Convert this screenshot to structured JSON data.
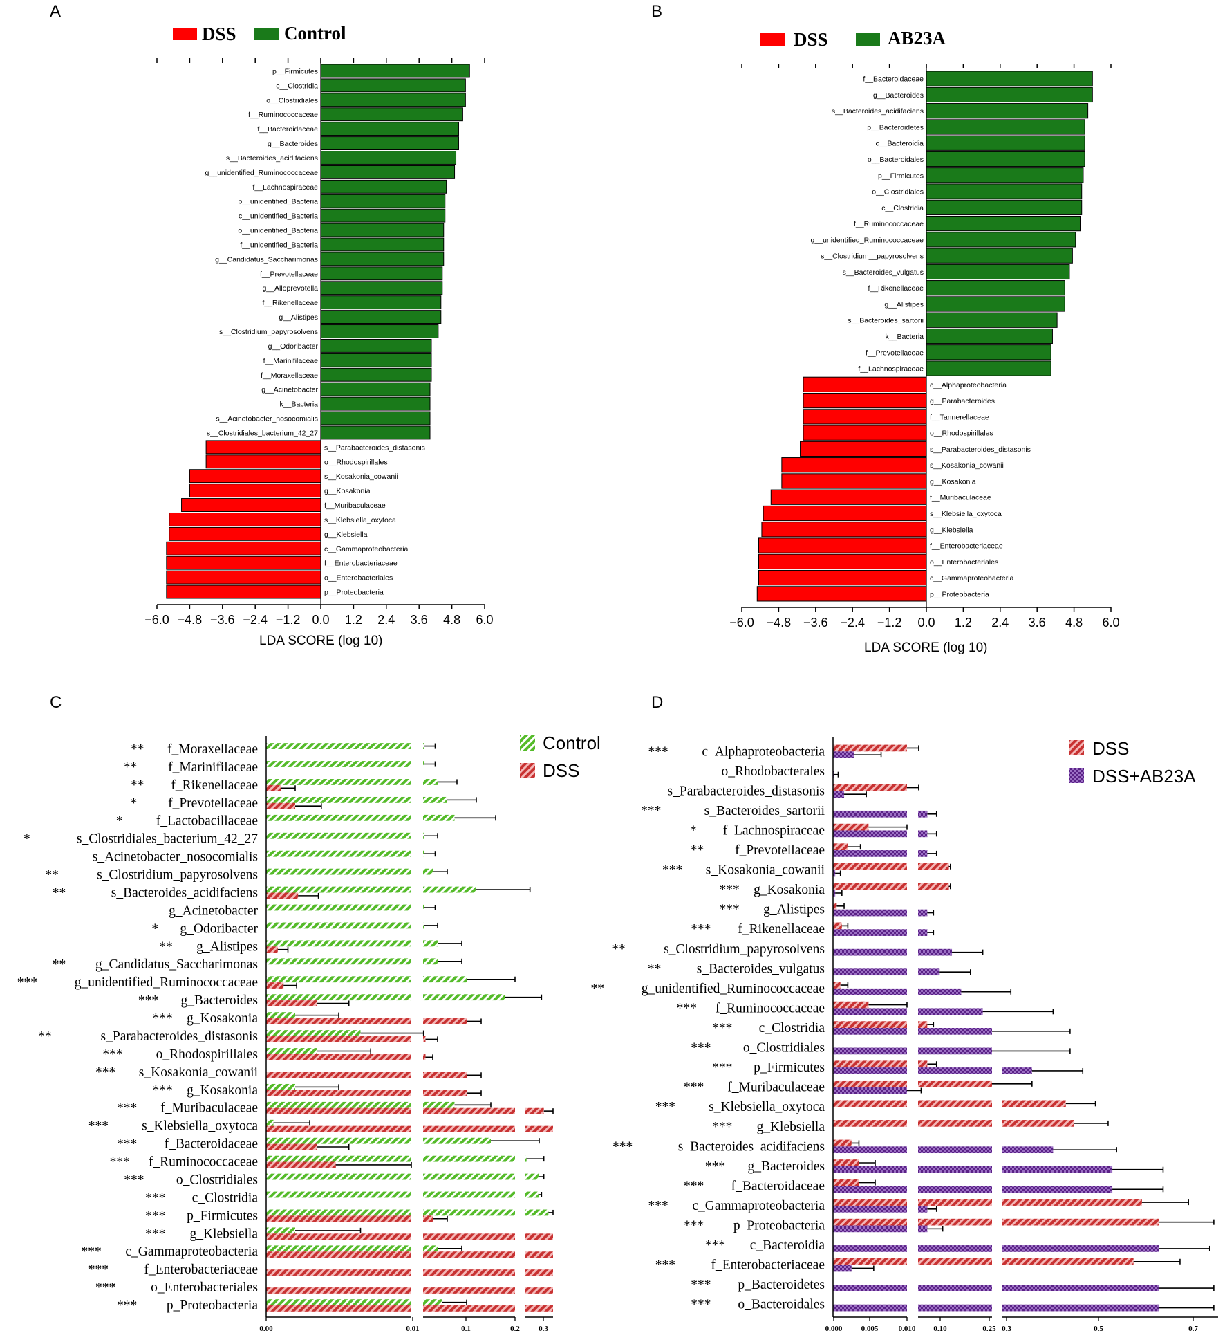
{
  "colors": {
    "dss": "#ff0000",
    "control": "#1a7a1a",
    "dss_hatch": "#c83232",
    "control_hatch": "#55bb2a",
    "ab23a_hatch": "#6a2a90"
  },
  "chart_data": [
    {
      "panel": "A",
      "type": "bar",
      "orientation": "horizontal",
      "legend": [
        "DSS",
        "Control"
      ],
      "xlabel": "LDA SCORE (log 10)",
      "xlim": [
        -6.0,
        6.0
      ],
      "xticks": [
        "−6.0",
        "−4.8",
        "−3.6",
        "−2.4",
        "−1.2",
        "0.0",
        "1.2",
        "2.4",
        "3.6",
        "4.8",
        "6.0"
      ],
      "categories": [
        "p__Firmicutes",
        "c__Clostridia",
        "o__Clostridiales",
        "f__Ruminococcaceae",
        "f__Bacteroidaceae",
        "g__Bacteroides",
        "s__Bacteroides_acidifaciens",
        "g__unidentified_Ruminococcaceae",
        "f__Lachnospiraceae",
        "p__unidentified_Bacteria",
        "c__unidentified_Bacteria",
        "o__unidentified_Bacteria",
        "f__unidentified_Bacteria",
        "g__Candidatus_Saccharimonas",
        "f__Prevotellaceae",
        "g__Alloprevotella",
        "f__Rikenellaceae",
        "g__Alistipes",
        "s__Clostridium_papyrosolvens",
        "g__Odoribacter",
        "f__Marinifilaceae",
        "f__Moraxellaceae",
        "g__Acinetobacter",
        "k__Bacteria",
        "s__Acinetobacter_nosocomialis",
        "s__Clostridiales_bacterium_42_27",
        "s__Parabacteroides_distasonis",
        "o__Rhodospirillales",
        "s__Kosakonia_cowanii",
        "g__Kosakonia",
        "f__Muribaculaceae",
        "s__Klebsiella_oxytoca",
        "g__Klebsiella",
        "c__Gammaproteobacteria",
        "f__Enterobacteriaceae",
        "o__Enterobacteriales",
        "p__Proteobacteria"
      ],
      "values": [
        5.45,
        5.3,
        5.3,
        5.2,
        5.05,
        5.05,
        4.95,
        4.9,
        4.6,
        4.55,
        4.55,
        4.5,
        4.5,
        4.5,
        4.45,
        4.45,
        4.4,
        4.4,
        4.3,
        4.05,
        4.05,
        4.05,
        4.0,
        4.0,
        4.0,
        4.0,
        -4.2,
        -4.2,
        -4.8,
        -4.8,
        -5.1,
        -5.55,
        -5.55,
        -5.65,
        -5.65,
        -5.65,
        -5.65
      ]
    },
    {
      "panel": "B",
      "type": "bar",
      "orientation": "horizontal",
      "legend": [
        "DSS",
        "AB23A"
      ],
      "xlabel": "LDA SCORE (log 10)",
      "xlim": [
        -6.0,
        6.0
      ],
      "xticks": [
        "−6.0",
        "−4.8",
        "−3.6",
        "−2.4",
        "−1.2",
        "0.0",
        "1.2",
        "2.4",
        "3.6",
        "4.8",
        "6.0"
      ],
      "categories": [
        "f__Bacteroidaceae",
        "g__Bacteroides",
        "s__Bacteroides_acidifaciens",
        "p__Bacteroidetes",
        "c__Bacteroidia",
        "o__Bacteroidales",
        "p__Firmicutes",
        "o__Clostridiales",
        "c__Clostridia",
        "f__Ruminococcaceae",
        "g__unidentified_Ruminococcaceae",
        "s__Clostridium__papyrosolvens",
        "s__Bacteroides_vulgatus",
        "f__Rikenellaceae",
        "g__Alistipes",
        "s__Bacteroides_sartorii",
        "k__Bacteria",
        "f__Prevotellaceae",
        "f__Lachnospiraceae",
        "c__Alphaproteobacteria",
        "g__Parabacteroides",
        "f__Tannerellaceae",
        "o__Rhodospirillales",
        "s__Parabacteroides_distasonis",
        "s__Kosakonia_cowanii",
        "g__Kosakonia",
        "f__Muribaculaceae",
        "s__Klebsiella_oxytoca",
        "g__Klebsiella",
        "f__Enterobacteriaceae",
        "o__Enterobacteriales",
        "c__Gammaproteobacteria",
        "p__Proteobacteria"
      ],
      "values": [
        5.4,
        5.4,
        5.25,
        5.15,
        5.15,
        5.15,
        5.1,
        5.05,
        5.05,
        5.0,
        4.85,
        4.75,
        4.65,
        4.5,
        4.5,
        4.25,
        4.1,
        4.05,
        4.05,
        -4.0,
        -4.0,
        -4.0,
        -4.0,
        -4.1,
        -4.7,
        -4.7,
        -5.05,
        -5.3,
        -5.35,
        -5.45,
        -5.45,
        -5.45,
        -5.5
      ]
    },
    {
      "panel": "C",
      "type": "bar",
      "orientation": "horizontal",
      "axis_break": true,
      "xticks": [
        "0.00",
        "0.01",
        "0.1",
        "0.2",
        "0.3"
      ],
      "categories": [
        "f_Moraxellaceae",
        "f_Marinifilaceae",
        "f_Rikenellaceae",
        "f_Prevotellaceae",
        "f_Lactobacillaceae",
        "s_Clostridiales_bacterium_42_27",
        "s_Acinetobacter_nosocomialis",
        "s_Clostridium_papyrosolvens",
        "s_Bacteroides_acidifaciens",
        "g_Acinetobacter",
        "g_Odoribacter",
        "g_Alistipes",
        "g_Candidatus_Saccharimonas",
        "g_unidentified_Ruminococcaceae",
        "g_Bacteroides",
        "g_Kosakonia",
        "s_Parabacteroides_distasonis",
        "o_Rhodospirillales",
        "s_Kosakonia_cowanii",
        "g_Kosakonia",
        "f_Muribaculaceae",
        "s_Klebsiella_oxytoca",
        "f_Bacteroidaceae",
        "f_Ruminococcaceae",
        "o_Clostridiales",
        "c_Clostridia",
        "p_Firmicutes",
        "g_Klebsiella",
        "c_Gammaproteobacteria",
        "f_Enterobacteriaceae",
        "o_Enterobacteriales",
        "p_Proteobacteria"
      ],
      "stars": [
        "**",
        "**",
        "**",
        "*",
        "*",
        "*",
        "",
        "**",
        "**",
        "",
        "*",
        "**",
        "**",
        "***",
        "***",
        "***",
        "**",
        "***",
        "***",
        "***",
        "***",
        "***",
        "***",
        "***",
        "***",
        "***",
        "***",
        "***",
        "***",
        "***",
        "***",
        "***"
      ],
      "series": [
        {
          "name": "Control",
          "values": [
            0.012,
            0.012,
            0.04,
            0.06,
            0.075,
            0.012,
            0.012,
            0.03,
            0.12,
            0.012,
            0.012,
            0.04,
            0.04,
            0.1,
            0.18,
            0.002,
            0.0065,
            0.0035,
            0.0,
            0.002,
            0.075,
            0.0005,
            0.15,
            0.205,
            0.26,
            0.26,
            0.3,
            0.002,
            0.04,
            0.0,
            0.0,
            0.05
          ],
          "errors": [
            0.035,
            0.035,
            0.08,
            0.12,
            0.16,
            0.04,
            0.035,
            0.06,
            0.22,
            0.035,
            0.04,
            0.09,
            0.09,
            0.2,
            0.27,
            0.005,
            0.011,
            0.0072,
            0.0,
            0.005,
            0.15,
            0.003,
            0.26,
            0.28,
            0.28,
            0.27,
            0.32,
            0.0065,
            0.09,
            0.0,
            0.0,
            0.1
          ]
        },
        {
          "name": "DSS",
          "values": [
            0.0,
            0.0,
            0.001,
            0.002,
            0.0,
            0.0,
            0.0,
            0.0,
            0.0022,
            0.0,
            0.0,
            0.0008,
            0.0,
            0.0012,
            0.0035,
            0.1,
            0.015,
            0.015,
            0.1,
            0.1,
            0.28,
            0.38,
            0.0035,
            0.0048,
            0.0,
            0.0,
            0.03,
            0.38,
            0.38,
            0.38,
            0.38,
            0.38
          ],
          "errors": [
            0.0,
            0.0,
            0.002,
            0.0038,
            0.0,
            0.0,
            0.0,
            0.0,
            0.0036,
            0.0,
            0.0,
            0.0015,
            0.0,
            0.0021,
            0.0057,
            0.13,
            0.04,
            0.03,
            0.13,
            0.13,
            0.32,
            0.38,
            0.0057,
            0.01,
            0.015,
            0.015,
            0.06,
            0.38,
            0.38,
            0.38,
            0.38,
            0.38
          ]
        }
      ],
      "legend": [
        "Control",
        "DSS"
      ]
    },
    {
      "panel": "D",
      "type": "bar",
      "orientation": "horizontal",
      "axis_break": true,
      "xticks": [
        "0.000",
        "0.005",
        "0.010",
        "0.10",
        "0.25",
        "0.3",
        "0.5",
        "0.7"
      ],
      "categories": [
        "c_Alphaproteobacteria",
        "o_Rhodobacterales",
        "s_Parabacteroides_distasonis",
        "s_Bacteroides_sartorii",
        "f_Lachnospiraceae",
        "f_Prevotellaceae",
        "s_Kosakonia_cowanii",
        "g_Kosakonia",
        "g_Alistipes",
        "f_Rikenellaceae",
        "s_Clostridium_papyrosolvens",
        "s_Bacteroides_vulgatus",
        "g_unidentified_Ruminococcaceae",
        "f_Ruminococcaceae",
        "c_Clostridia",
        "o_Clostridiales",
        "p_Firmicutes",
        "f_Muribaculaceae",
        "s_Klebsiella_oxytoca",
        "g_Klebsiella",
        "s_Bacteroides_acidifaciens",
        "g_Bacteroides",
        "f_Bacteroidaceae",
        "c_Gammaproteobacteria",
        "p_Proteobacteria",
        "c_Bacteroidia",
        "f_Enterobacteriaceae",
        "p_Bacteroidetes",
        "o_Bacteroidales"
      ],
      "stars": [
        "***",
        "",
        "",
        "***",
        "*",
        "**",
        "***",
        "***",
        "***",
        "***",
        "**",
        "**",
        "**",
        "***",
        "***",
        "***",
        "***",
        "***",
        "***",
        "***",
        "***",
        "***",
        "***",
        "***",
        "***",
        "***",
        "***",
        "***",
        "***"
      ],
      "series": [
        {
          "name": "DSS",
          "values": [
            0.01,
            0.0,
            0.01,
            0.0,
            0.0048,
            0.002,
            0.11,
            0.11,
            0.0005,
            0.0012,
            0.0,
            0.0,
            0.001,
            0.0048,
            0.04,
            0.0,
            0.04,
            0.25,
            0.4,
            0.42,
            0.0025,
            0.0035,
            0.0035,
            0.58,
            0.62,
            0.0,
            0.56,
            0.0,
            0.0
          ],
          "errors": [
            0.012,
            0.0,
            0.012,
            0.0,
            0.01,
            0.0037,
            0.115,
            0.115,
            0.0015,
            0.002,
            0.0,
            0.0,
            0.002,
            0.01,
            0.06,
            0.0,
            0.07,
            0.32,
            0.47,
            0.5,
            0.0035,
            0.0057,
            0.0057,
            0.69,
            0.75,
            0.0,
            0.67,
            0.0,
            0.0
          ]
        },
        {
          "name": "DSS+AB23A",
          "values": [
            0.0028,
            0.0001,
            0.0015,
            0.04,
            0.04,
            0.04,
            0.0003,
            0.0003,
            0.04,
            0.04,
            0.12,
            0.08,
            0.15,
            0.22,
            0.25,
            0.25,
            0.32,
            0.01,
            0.0,
            0.0,
            0.37,
            0.51,
            0.51,
            0.04,
            0.04,
            0.62,
            0.0025,
            0.62,
            0.62
          ],
          "errors": [
            0.0065,
            0.0007,
            0.0045,
            0.07,
            0.07,
            0.07,
            0.001,
            0.0012,
            0.06,
            0.06,
            0.22,
            0.18,
            0.27,
            0.37,
            0.41,
            0.41,
            0.44,
            0.02,
            0.0,
            0.0,
            0.52,
            0.63,
            0.63,
            0.07,
            0.09,
            0.74,
            0.0055,
            0.75,
            0.75
          ]
        }
      ],
      "legend": [
        "DSS",
        "DSS+AB23A"
      ]
    }
  ]
}
